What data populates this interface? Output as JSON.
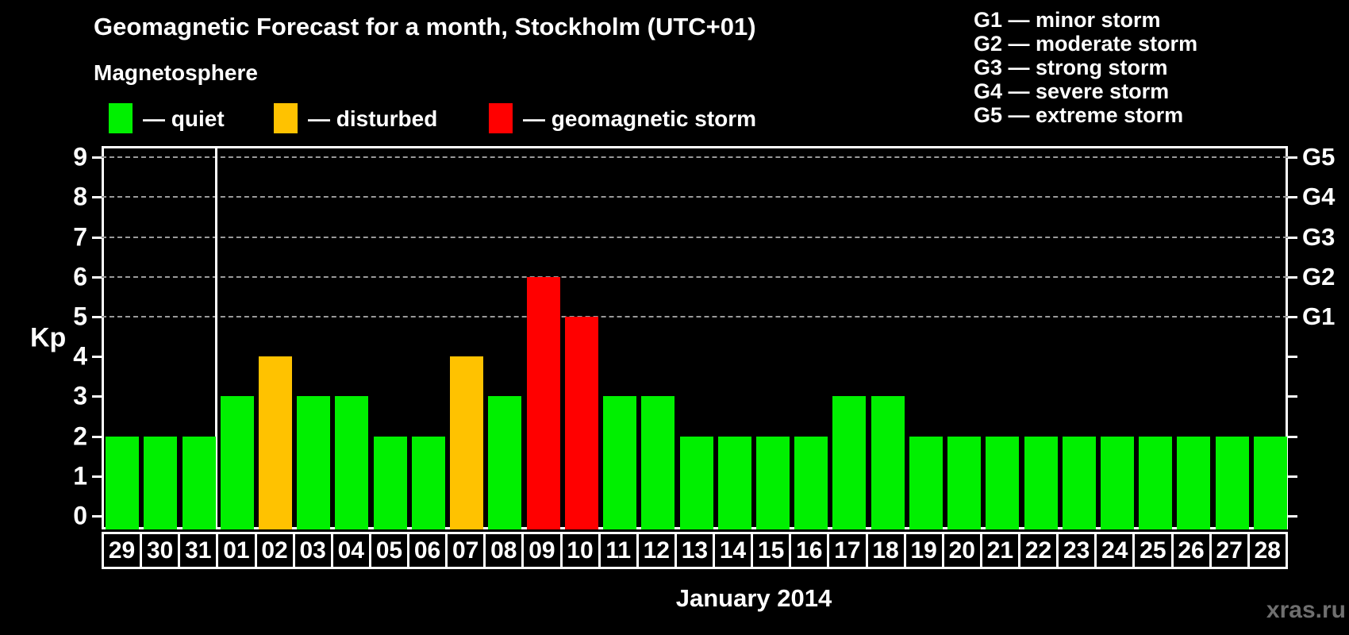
{
  "title": "Geomagnetic Forecast for a month, Stockholm (UTC+01)",
  "subtitle": "Magnetosphere",
  "legend": {
    "items": [
      {
        "name": "quiet",
        "label": "— quiet",
        "color": "#00f000"
      },
      {
        "name": "disturbed",
        "label": "— disturbed",
        "color": "#ffc200"
      },
      {
        "name": "storm",
        "label": "— geomagnetic storm",
        "color": "#ff0000"
      }
    ]
  },
  "storm_scale_legend": {
    "items": [
      "G1 — minor storm",
      "G2 — moderate storm",
      "G3 — strong storm",
      "G4 — severe storm",
      "G5 — extreme storm"
    ]
  },
  "watermark": "xras.ru",
  "chart_data": {
    "type": "bar",
    "title": "Geomagnetic Forecast for a month, Stockholm (UTC+01)",
    "subtitle": "Magnetosphere",
    "xlabel": "January 2014",
    "ylabel": "Kp",
    "ylim": [
      0,
      9
    ],
    "y_ticks": [
      0,
      1,
      2,
      3,
      4,
      5,
      6,
      7,
      8,
      9
    ],
    "gridlines_at": [
      5,
      6,
      7,
      8,
      9
    ],
    "grid_style": "horizontal dashed gray at storm levels only",
    "right_axis_labels": [
      {
        "value": 5,
        "label": "G1"
      },
      {
        "value": 6,
        "label": "G2"
      },
      {
        "value": 7,
        "label": "G3"
      },
      {
        "value": 8,
        "label": "G4"
      },
      {
        "value": 9,
        "label": "G5"
      }
    ],
    "categories": [
      "29",
      "30",
      "31",
      "01",
      "02",
      "03",
      "04",
      "05",
      "06",
      "07",
      "08",
      "09",
      "10",
      "11",
      "12",
      "13",
      "14",
      "15",
      "16",
      "17",
      "18",
      "19",
      "20",
      "21",
      "22",
      "23",
      "24",
      "25",
      "26",
      "27",
      "28"
    ],
    "values": [
      2,
      2,
      2,
      3,
      4,
      3,
      3,
      2,
      2,
      4,
      3,
      6,
      5,
      3,
      3,
      2,
      2,
      2,
      2,
      3,
      3,
      2,
      2,
      2,
      2,
      2,
      2,
      2,
      2,
      2,
      2
    ],
    "statuses": [
      "quiet",
      "quiet",
      "quiet",
      "quiet",
      "disturbed",
      "quiet",
      "quiet",
      "quiet",
      "quiet",
      "disturbed",
      "quiet",
      "storm",
      "storm",
      "quiet",
      "quiet",
      "quiet",
      "quiet",
      "quiet",
      "quiet",
      "quiet",
      "quiet",
      "quiet",
      "quiet",
      "quiet",
      "quiet",
      "quiet",
      "quiet",
      "quiet",
      "quiet",
      "quiet",
      "quiet"
    ],
    "colors": {
      "quiet": "#00f000",
      "disturbed": "#ffc200",
      "storm": "#ff0000"
    },
    "month_separator_after_index": 2,
    "legend_position": "top-left"
  }
}
